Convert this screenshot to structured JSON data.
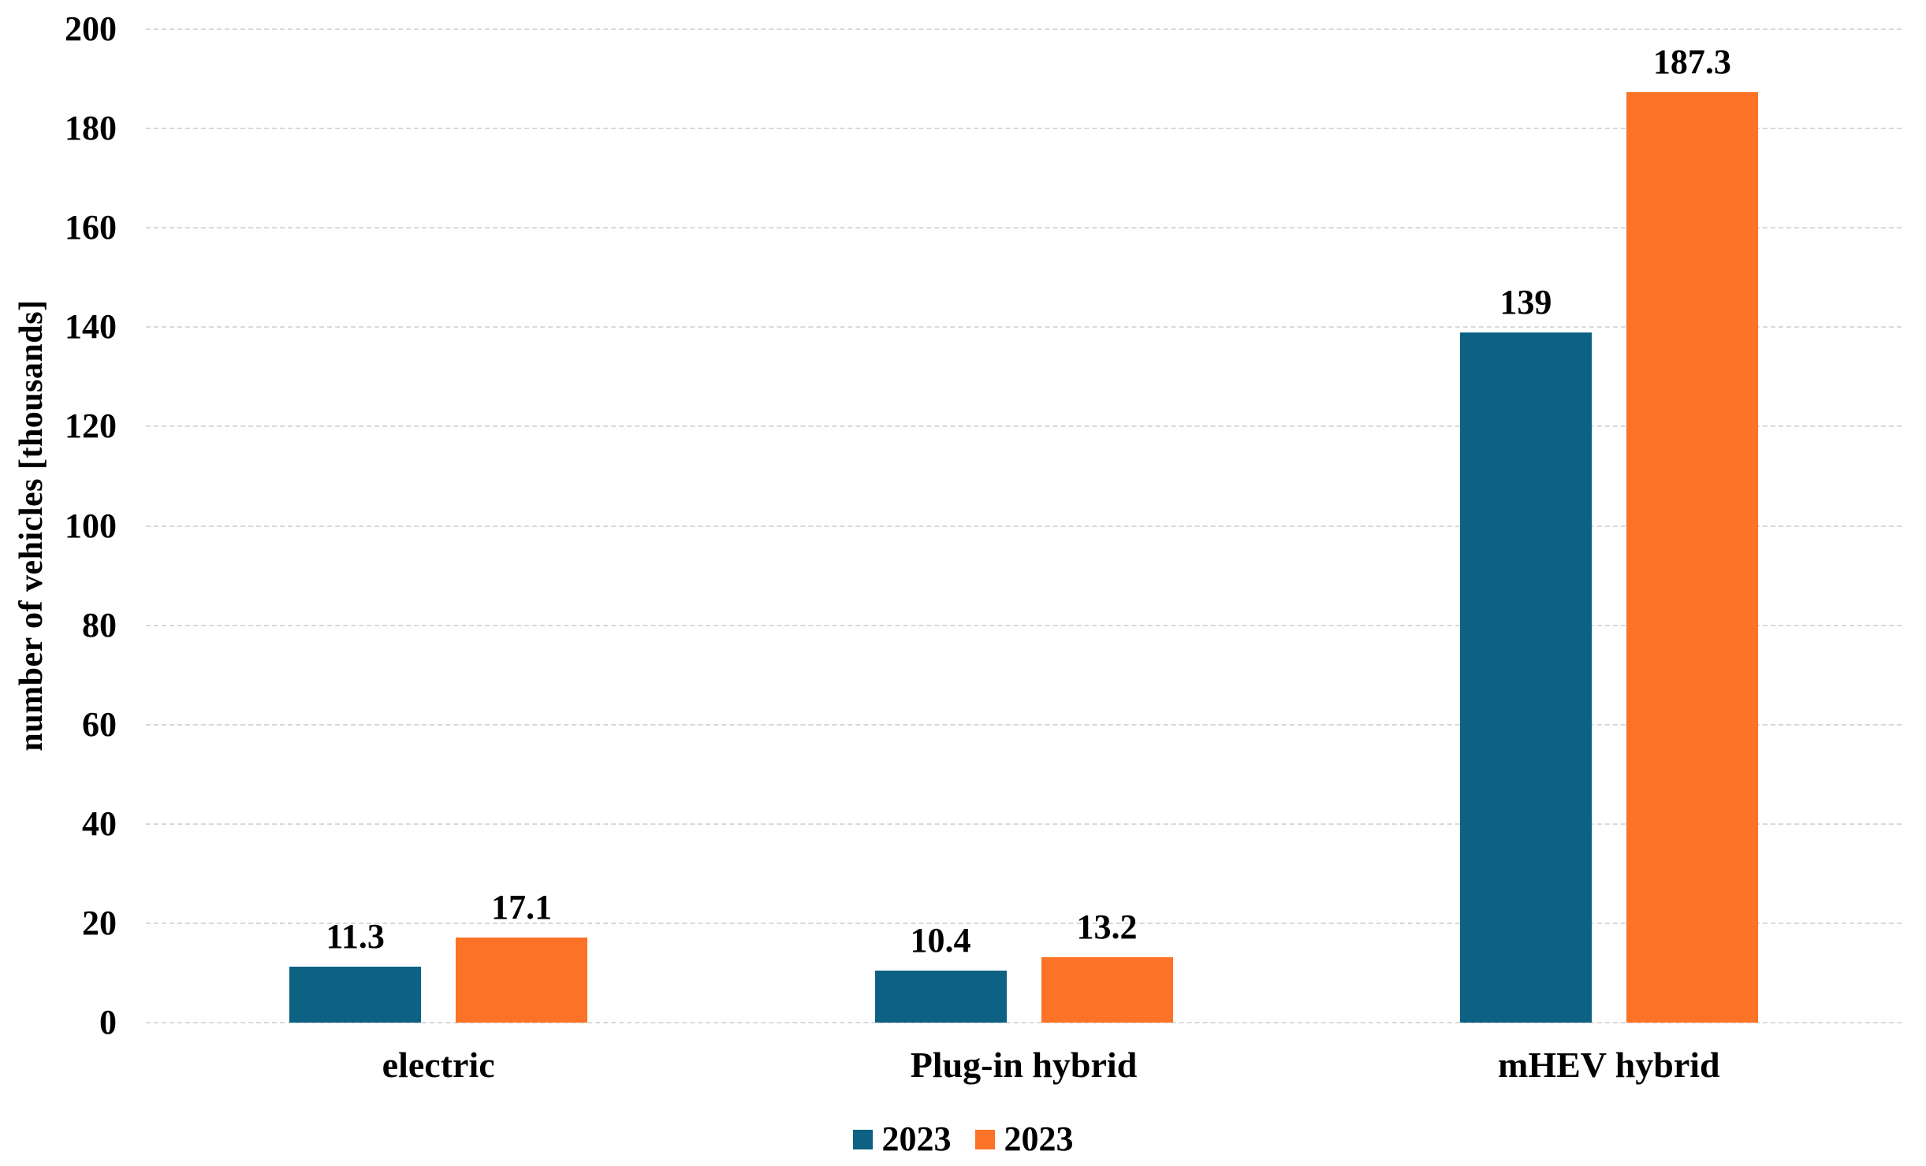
{
  "chart_data": {
    "type": "bar",
    "title": "",
    "categories": [
      "electric",
      "Plug-in hybrid",
      "mHEV hybrid"
    ],
    "series": [
      {
        "name": "2023",
        "color": "#0d6183",
        "values": [
          11.3,
          10.4,
          139
        ],
        "value_labels": [
          "11.3",
          "10.4",
          "139"
        ]
      },
      {
        "name": "2023",
        "color": "#fc7226",
        "values": [
          17.1,
          13.2,
          187.3
        ],
        "value_labels": [
          "17.1",
          "13.2",
          "187.3"
        ]
      }
    ],
    "xlabel": "",
    "ylabel": "number of vehicles [thousands]",
    "ylim": [
      0,
      200
    ],
    "ytick_step": 20,
    "yticks": [
      "0",
      "20",
      "40",
      "60",
      "80",
      "100",
      "120",
      "140",
      "160",
      "180",
      "200"
    ],
    "grid": true,
    "gridline_style": "dashed",
    "legend_position": "bottom-center",
    "colors": {
      "series1": "#0d6183",
      "series2": "#fc7226",
      "gridline": "#d9d9d9",
      "text": "#000000",
      "background": "#ffffff"
    }
  }
}
